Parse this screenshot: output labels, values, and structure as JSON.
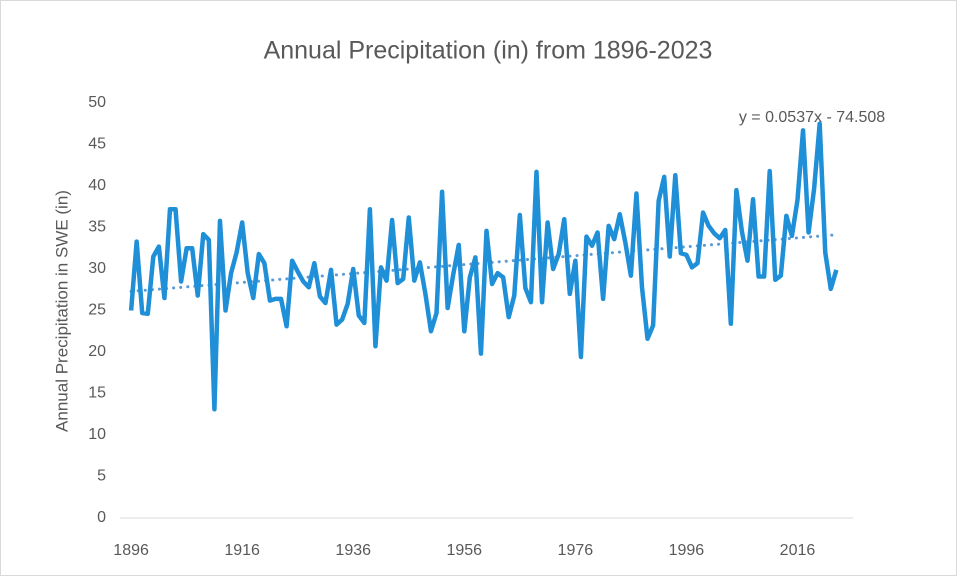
{
  "chart_data": {
    "type": "line",
    "title": "Annual Precipitation (in) from 1896-2023",
    "y_label": "Annual Precipitation in SWE (in)",
    "x": [
      1896,
      1897,
      1898,
      1899,
      1900,
      1901,
      1902,
      1903,
      1904,
      1905,
      1906,
      1907,
      1908,
      1909,
      1910,
      1911,
      1912,
      1913,
      1914,
      1915,
      1916,
      1917,
      1918,
      1919,
      1920,
      1921,
      1922,
      1923,
      1924,
      1925,
      1926,
      1927,
      1928,
      1929,
      1930,
      1931,
      1932,
      1933,
      1934,
      1935,
      1936,
      1937,
      1938,
      1939,
      1940,
      1941,
      1942,
      1943,
      1944,
      1945,
      1946,
      1947,
      1948,
      1949,
      1950,
      1951,
      1952,
      1953,
      1954,
      1955,
      1956,
      1957,
      1958,
      1959,
      1960,
      1961,
      1962,
      1963,
      1964,
      1965,
      1966,
      1967,
      1968,
      1969,
      1970,
      1971,
      1972,
      1973,
      1974,
      1975,
      1976,
      1977,
      1978,
      1979,
      1980,
      1981,
      1982,
      1983,
      1984,
      1985,
      1986,
      1987,
      1988,
      1989,
      1990,
      1991,
      1992,
      1993,
      1994,
      1995,
      1996,
      1997,
      1998,
      1999,
      2000,
      2001,
      2002,
      2003,
      2004,
      2005,
      2006,
      2007,
      2008,
      2009,
      2010,
      2011,
      2012,
      2013,
      2014,
      2015,
      2016,
      2017,
      2018,
      2019,
      2020,
      2021,
      2022,
      2023
    ],
    "series": [
      {
        "name": "Annual Precipitation",
        "color": "#1f8fd8",
        "values": [
          25,
          33.3,
          24.7,
          24.6,
          31.5,
          32.7,
          26.5,
          37.2,
          37.2,
          28.5,
          32.5,
          32.5,
          26.8,
          34.2,
          33.5,
          13.1,
          35.8,
          25,
          29.5,
          32,
          35.6,
          29.5,
          26.5,
          31.8,
          30.7,
          26.2,
          26.4,
          26.4,
          23.1,
          31,
          29.7,
          28.5,
          27.8,
          30.7,
          26.7,
          25.9,
          29.9,
          23.3,
          23.9,
          25.8,
          30,
          24.4,
          23.5,
          37.2,
          20.7,
          30.2,
          28.6,
          35.9,
          28.3,
          28.8,
          36.2,
          28.6,
          30.8,
          27,
          22.5,
          24.7,
          39.3,
          25.3,
          29.3,
          32.9,
          22.5,
          29,
          31.4,
          19.8,
          34.6,
          28.2,
          29.5,
          29,
          24.2,
          26.8,
          36.5,
          27.7,
          26,
          41.7,
          26,
          35.6,
          30,
          31.8,
          36,
          27,
          31,
          19.4,
          33.9,
          32.8,
          34.4,
          26.4,
          35.2,
          33.6,
          36.6,
          33.2,
          29.2,
          39.1,
          27.8,
          21.6,
          23.2,
          38.2,
          41.1,
          31.5,
          41.3,
          31.9,
          31.7,
          30.2,
          30.7,
          36.8,
          35.2,
          34.3,
          33.7,
          34.7,
          23.4,
          39.5,
          34.5,
          31,
          38.4,
          29.1,
          29.1,
          41.8,
          28.7,
          29.2,
          36.4,
          34,
          38.3,
          46.7,
          34.4,
          39.7,
          47.5,
          32,
          27.6,
          29.9
        ]
      }
    ],
    "trendline": {
      "slope": 0.0537,
      "intercept": -74.508,
      "label": "y = 0.0537x - 74.508",
      "color": "#5b9bd5"
    },
    "xlim": [
      1894,
      2026
    ],
    "xticks": [
      1896,
      1916,
      1936,
      1956,
      1976,
      1996,
      2016
    ],
    "ylim": [
      0,
      50
    ],
    "yticks": [
      0,
      5,
      10,
      15,
      20,
      25,
      30,
      35,
      40,
      45,
      50
    ],
    "grid": false
  }
}
